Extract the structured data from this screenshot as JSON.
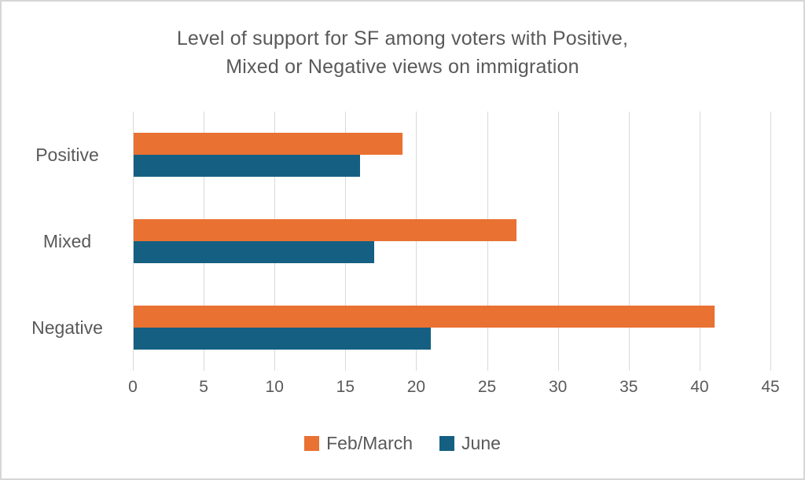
{
  "frame": {
    "background": "#ffffff",
    "border_color": "#d6d6d6"
  },
  "chart_data": {
    "type": "bar",
    "orientation": "horizontal",
    "title_lines": [
      "Level of support for SF among voters with Positive,",
      "Mixed or Negative views on immigration"
    ],
    "categories": [
      "Positive",
      "Mixed",
      "Negative"
    ],
    "series": [
      {
        "name": "Feb/March",
        "color": "#E97132",
        "values": [
          19,
          27,
          41
        ]
      },
      {
        "name": "June",
        "color": "#156082",
        "values": [
          16,
          17,
          21
        ]
      }
    ],
    "x_ticks": [
      0,
      5,
      10,
      15,
      20,
      25,
      30,
      35,
      40,
      45
    ],
    "xlim": [
      0,
      45
    ],
    "grid": true,
    "legend_position": "bottom",
    "text_color": "#595959",
    "gridline_color": "#d9d9d9"
  }
}
